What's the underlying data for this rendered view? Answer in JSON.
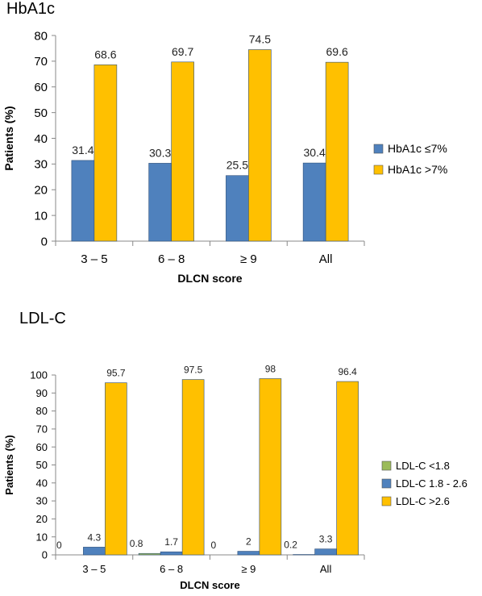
{
  "chart_data": [
    {
      "type": "bar",
      "title": "HbA1c",
      "xlabel": "DLCN score",
      "ylabel": "Patients (%)",
      "ylim": [
        0,
        80
      ],
      "yticks": [
        0,
        10,
        20,
        30,
        40,
        50,
        60,
        70,
        80
      ],
      "categories": [
        "3 – 5",
        "6 – 8",
        "≥ 9",
        "All"
      ],
      "series": [
        {
          "name": "HbA1c ≤7%",
          "color": "#4f81bd",
          "values": [
            31.4,
            30.3,
            25.5,
            30.4
          ]
        },
        {
          "name": "HbA1c >7%",
          "color": "#ffc000",
          "values": [
            68.6,
            69.7,
            74.5,
            69.6
          ]
        }
      ],
      "grid": false,
      "legend": "right"
    },
    {
      "type": "bar",
      "title": "LDL-C",
      "xlabel": "DLCN score",
      "ylabel": "Patients (%)",
      "ylim": [
        0,
        100
      ],
      "yticks": [
        0,
        10,
        20,
        30,
        40,
        50,
        60,
        70,
        80,
        90,
        100
      ],
      "categories": [
        "3 – 5",
        "6 – 8",
        "≥ 9",
        "All"
      ],
      "series": [
        {
          "name": "LDL-C <1.8",
          "color": "#9bbb59",
          "values": [
            0,
            0.8,
            0,
            0.2
          ]
        },
        {
          "name": "LDL-C 1.8 - 2.6",
          "color": "#4f81bd",
          "values": [
            4.3,
            1.7,
            2,
            3.3
          ]
        },
        {
          "name": "LDL-C >2.6",
          "color": "#ffc000",
          "values": [
            95.7,
            97.5,
            98,
            96.4
          ]
        }
      ],
      "grid": false,
      "legend": "right"
    }
  ]
}
